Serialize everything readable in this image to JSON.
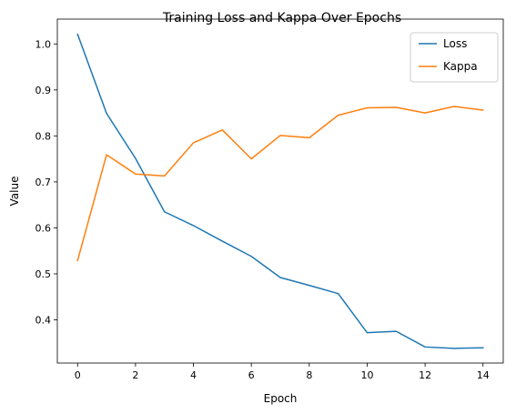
{
  "chart_data": {
    "type": "line",
    "title": "Training Loss and Kappa Over Epochs",
    "xlabel": "Epoch",
    "ylabel": "Value",
    "x": [
      0,
      1,
      2,
      3,
      4,
      5,
      6,
      7,
      8,
      9,
      10,
      11,
      12,
      13,
      14
    ],
    "xlim": [
      -0.7,
      14.7
    ],
    "ylim": [
      0.306,
      1.054
    ],
    "xticks": [
      0,
      2,
      4,
      6,
      8,
      10,
      12,
      14
    ],
    "yticks": [
      0.4,
      0.5,
      0.6,
      0.7,
      0.8,
      0.9,
      1.0
    ],
    "xtick_labels": [
      "0",
      "2",
      "4",
      "6",
      "8",
      "10",
      "12",
      "14"
    ],
    "ytick_labels": [
      "0.4",
      "0.5",
      "0.6",
      "0.7",
      "0.8",
      "0.9",
      "1.0"
    ],
    "grid": false,
    "legend_position": "top-right",
    "series": [
      {
        "name": "Loss",
        "color": "#1f77b4",
        "values": [
          1.021,
          0.849,
          0.751,
          0.635,
          0.605,
          0.571,
          0.538,
          0.492,
          0.475,
          0.457,
          0.372,
          0.375,
          0.341,
          0.338,
          0.339
        ]
      },
      {
        "name": "Kappa",
        "color": "#ff7f0e",
        "values": [
          0.529,
          0.759,
          0.717,
          0.713,
          0.785,
          0.813,
          0.75,
          0.801,
          0.796,
          0.845,
          0.861,
          0.862,
          0.85,
          0.864,
          0.856
        ]
      }
    ]
  }
}
